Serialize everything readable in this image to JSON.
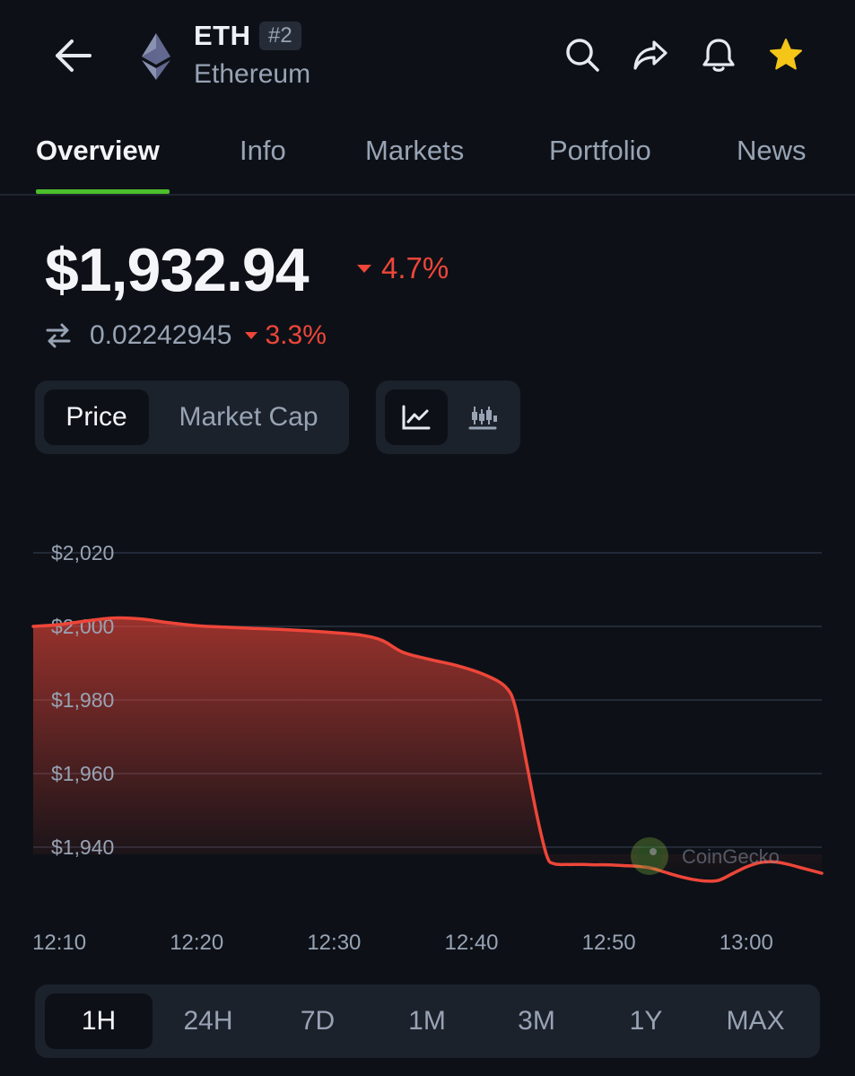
{
  "header": {
    "symbol": "ETH",
    "rank": "#2",
    "name": "Ethereum",
    "icons": [
      "arrow-left-icon",
      "ethereum-logo",
      "search-icon",
      "share-icon",
      "bell-icon",
      "star-icon"
    ],
    "star_color": "#f5c518"
  },
  "tabs": [
    {
      "label": "Overview",
      "active": true
    },
    {
      "label": "Info",
      "active": false
    },
    {
      "label": "Markets",
      "active": false
    },
    {
      "label": "Portfolio",
      "active": false
    },
    {
      "label": "News",
      "active": false
    }
  ],
  "price": {
    "usd": "$1,932.94",
    "usd_change": "4.7%",
    "btc": "΀0.02242945",
    "btc_change": "3.3%",
    "direction": "down",
    "negative_color": "#ee4639"
  },
  "toggles": {
    "metric": [
      {
        "label": "Price",
        "active": true
      },
      {
        "label": "Market Cap",
        "active": false
      }
    ],
    "chart_style": [
      {
        "icon": "line-chart-icon",
        "active": true
      },
      {
        "icon": "candlestick-chart-icon",
        "active": false
      }
    ]
  },
  "chart_data": {
    "type": "area",
    "ylim": [
      1920,
      2030
    ],
    "y_ticks": [
      2020,
      2000,
      1980,
      1960,
      1940
    ],
    "y_tick_labels": [
      "$2,020",
      "$2,000",
      "$1,980",
      "$1,960",
      "$1,940"
    ],
    "x_tick_labels": [
      "12:10",
      "12:20",
      "12:30",
      "12:40",
      "12:50",
      "13:00"
    ],
    "x_ticks_minutes": [
      10,
      20,
      30,
      40,
      50,
      60
    ],
    "xlim_minutes": [
      8.1,
      65.5
    ],
    "x_minutes": [
      8.1,
      10,
      12,
      14,
      16,
      18,
      20,
      22,
      24,
      26,
      28,
      30,
      32,
      33.5,
      35,
      37,
      39,
      41,
      42.5,
      43.2,
      44,
      44.8,
      45.5,
      46,
      47,
      48,
      49,
      50,
      51,
      52,
      53,
      54,
      55,
      56,
      57,
      58,
      59,
      60,
      61,
      62,
      63,
      64,
      65.5
    ],
    "y": [
      2000,
      2000.5,
      2001.5,
      2002.3,
      2002,
      2001,
      2000.2,
      1999.8,
      1999.5,
      1999.2,
      1998.8,
      1998.3,
      1997.6,
      1996.2,
      1993,
      1991,
      1989.3,
      1986.8,
      1983.5,
      1978,
      1963,
      1948,
      1937.5,
      1935.5,
      1935.3,
      1935.3,
      1935.2,
      1935.2,
      1935,
      1934.8,
      1934.4,
      1933.3,
      1932.2,
      1931.3,
      1930.8,
      1931,
      1932.8,
      1934.6,
      1935.8,
      1936,
      1935.4,
      1934.4,
      1932.9
    ],
    "color": "#ee4639",
    "grid": true,
    "watermark": "CoinGecko"
  },
  "ranges": [
    {
      "label": "1H",
      "active": true
    },
    {
      "label": "24H",
      "active": false
    },
    {
      "label": "7D",
      "active": false
    },
    {
      "label": "1M",
      "active": false
    },
    {
      "label": "3M",
      "active": false
    },
    {
      "label": "1Y",
      "active": false
    },
    {
      "label": "MAX",
      "active": false
    }
  ]
}
